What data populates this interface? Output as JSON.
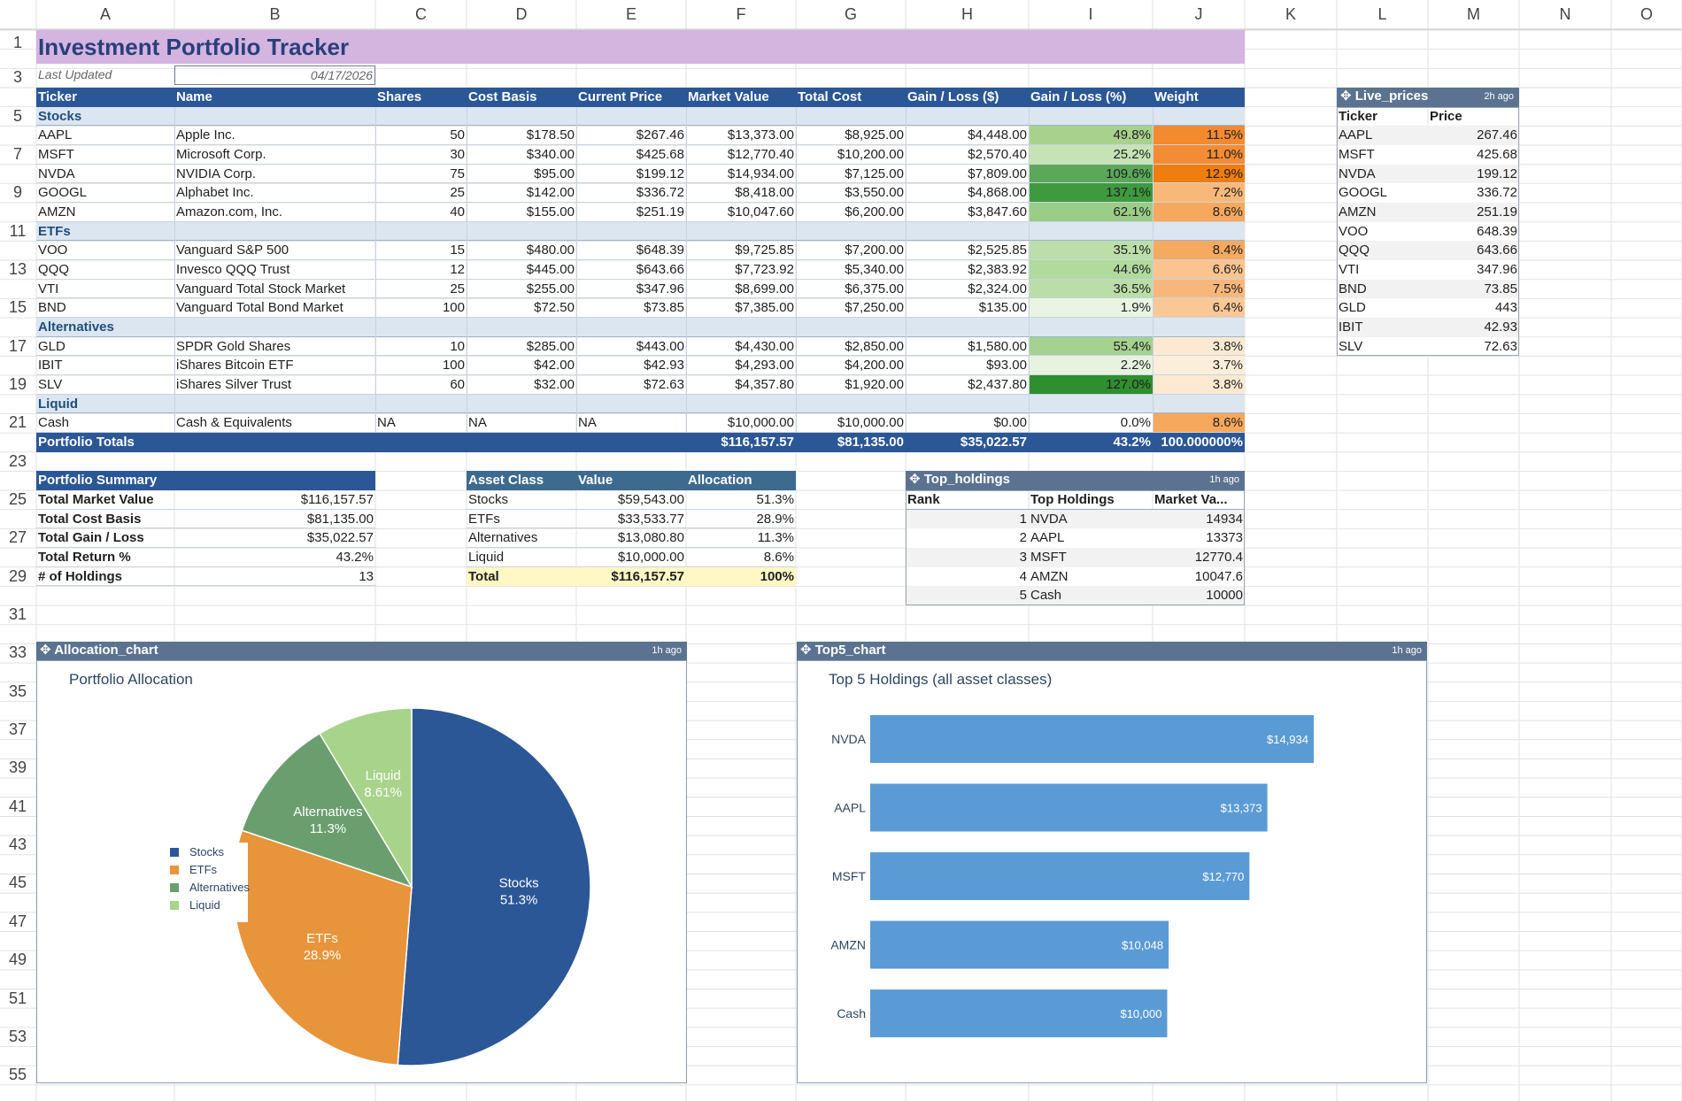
{
  "columns": [
    "A",
    "B",
    "C",
    "D",
    "E",
    "F",
    "G",
    "H",
    "I",
    "J",
    "K",
    "L",
    "M",
    "N",
    "O"
  ],
  "row_numbers": [
    "1",
    "3",
    "5",
    "7",
    "9",
    "11",
    "13",
    "15",
    "17",
    "19",
    "21",
    "23",
    "25",
    "27",
    "29",
    "31",
    "33",
    "35",
    "37",
    "39",
    "41",
    "43",
    "45",
    "47",
    "49",
    "51",
    "53",
    "55"
  ],
  "title": "Investment Portfolio Tracker",
  "last_updated_label": "Last Updated",
  "last_updated_value": "04/17/2026",
  "holdings_headers": [
    "Ticker",
    "Name",
    "Shares",
    "Cost Basis",
    "Current Price",
    "Market Value",
    "Total Cost",
    "Gain / Loss ($)",
    "Gain / Loss (%)",
    "Weight"
  ],
  "groups": {
    "stocks": "Stocks",
    "etfs": "ETFs",
    "alternatives": "Alternatives",
    "liquid": "Liquid"
  },
  "rows": [
    {
      "ticker": "AAPL",
      "name": "Apple Inc.",
      "shares": "50",
      "cost": "$178.50",
      "price": "$267.46",
      "mv": "$13,373.00",
      "tc": "$8,925.00",
      "gl": "$4,448.00",
      "glp": "49.8%",
      "w": "11.5%",
      "glc": "#a9d18e",
      "wc": "#f28a30"
    },
    {
      "ticker": "MSFT",
      "name": "Microsoft Corp.",
      "shares": "30",
      "cost": "$340.00",
      "price": "$425.68",
      "mv": "$12,770.40",
      "tc": "$10,200.00",
      "gl": "$2,570.40",
      "glp": "25.2%",
      "w": "11.0%",
      "glc": "#c6e3b5",
      "wc": "#f48c35"
    },
    {
      "ticker": "NVDA",
      "name": "NVIDIA Corp.",
      "shares": "75",
      "cost": "$95.00",
      "price": "$199.12",
      "mv": "$14,934.00",
      "tc": "$7,125.00",
      "gl": "$7,809.00",
      "glp": "109.6%",
      "w": "12.9%",
      "glc": "#5ba85a",
      "wc": "#f07d10"
    },
    {
      "ticker": "GOOGL",
      "name": "Alphabet Inc.",
      "shares": "25",
      "cost": "$142.00",
      "price": "$336.72",
      "mv": "$8,418.00",
      "tc": "$3,550.00",
      "gl": "$4,868.00",
      "glp": "137.1%",
      "w": "7.2%",
      "glc": "#3e9a3e",
      "wc": "#f8b87a"
    },
    {
      "ticker": "AMZN",
      "name": "Amazon.com, Inc.",
      "shares": "40",
      "cost": "$155.00",
      "price": "$251.19",
      "mv": "$10,047.60",
      "tc": "$6,200.00",
      "gl": "$3,847.60",
      "glp": "62.1%",
      "w": "8.6%",
      "glc": "#9acd86",
      "wc": "#f6a85c"
    },
    {
      "ticker": "VOO",
      "name": "Vanguard S&P 500",
      "shares": "15",
      "cost": "$480.00",
      "price": "$648.39",
      "mv": "$9,725.85",
      "tc": "$7,200.00",
      "gl": "$2,525.85",
      "glp": "35.1%",
      "w": "8.4%",
      "glc": "#bcdfaa",
      "wc": "#f6aa60"
    },
    {
      "ticker": "QQQ",
      "name": "Invesco QQQ Trust",
      "shares": "12",
      "cost": "$445.00",
      "price": "$643.66",
      "mv": "$7,723.92",
      "tc": "$5,340.00",
      "gl": "$2,383.92",
      "glp": "44.6%",
      "w": "6.6%",
      "glc": "#b1da9d",
      "wc": "#f9c48f"
    },
    {
      "ticker": "VTI",
      "name": "Vanguard Total Stock Market",
      "shares": "25",
      "cost": "$255.00",
      "price": "$347.96",
      "mv": "$8,699.00",
      "tc": "$6,375.00",
      "gl": "$2,324.00",
      "glp": "36.5%",
      "w": "7.5%",
      "glc": "#bbdea8",
      "wc": "#f8b77a"
    },
    {
      "ticker": "BND",
      "name": "Vanguard Total Bond Market",
      "shares": "100",
      "cost": "$72.50",
      "price": "$73.85",
      "mv": "$7,385.00",
      "tc": "$7,250.00",
      "gl": "$135.00",
      "glp": "1.9%",
      "w": "6.4%",
      "glc": "#e9f4e2",
      "wc": "#fac896"
    },
    {
      "ticker": "GLD",
      "name": "SPDR Gold Shares",
      "shares": "10",
      "cost": "$285.00",
      "price": "$443.00",
      "mv": "$4,430.00",
      "tc": "$2,850.00",
      "gl": "$1,580.00",
      "glp": "55.4%",
      "w": "3.8%",
      "glc": "#a6d290",
      "wc": "#fde9d2"
    },
    {
      "ticker": "IBIT",
      "name": "iShares Bitcoin ETF",
      "shares": "100",
      "cost": "$42.00",
      "price": "$42.93",
      "mv": "$4,293.00",
      "tc": "$4,200.00",
      "gl": "$93.00",
      "glp": "2.2%",
      "w": "3.7%",
      "glc": "#e7f3e0",
      "wc": "#fdeedb"
    },
    {
      "ticker": "SLV",
      "name": "iShares Silver Trust",
      "shares": "60",
      "cost": "$32.00",
      "price": "$72.63",
      "mv": "$4,357.80",
      "tc": "$1,920.00",
      "gl": "$2,437.80",
      "glp": "127.0%",
      "w": "3.8%",
      "glc": "#2f8f2f",
      "wc": "#fde9d2"
    },
    {
      "ticker": "Cash",
      "name": "Cash & Equivalents",
      "shares": "NA",
      "cost": "NA",
      "price": "NA",
      "mv": "$10,000.00",
      "tc": "$10,000.00",
      "gl": "$0.00",
      "glp": "0.0%",
      "w": "8.6%",
      "glc": "#ffffff",
      "wc": "#f6a85c"
    }
  ],
  "totals": {
    "label": "Portfolio Totals",
    "mv": "$116,157.57",
    "tc": "$81,135.00",
    "gl": "$35,022.57",
    "glp": "43.2%",
    "w": "100.000000%"
  },
  "live_prices": {
    "title": "Live_prices",
    "ago": "2h ago",
    "headers": [
      "Ticker",
      "Price"
    ],
    "rows": [
      [
        "AAPL",
        "267.46"
      ],
      [
        "MSFT",
        "425.68"
      ],
      [
        "NVDA",
        "199.12"
      ],
      [
        "GOOGL",
        "336.72"
      ],
      [
        "AMZN",
        "251.19"
      ],
      [
        "VOO",
        "648.39"
      ],
      [
        "QQQ",
        "643.66"
      ],
      [
        "VTI",
        "347.96"
      ],
      [
        "BND",
        "73.85"
      ],
      [
        "GLD",
        "443"
      ],
      [
        "IBIT",
        "42.93"
      ],
      [
        "SLV",
        "72.63"
      ]
    ]
  },
  "summary": {
    "title": "Portfolio Summary",
    "rows": [
      [
        "Total Market Value",
        "$116,157.57"
      ],
      [
        "Total Cost Basis",
        "$81,135.00"
      ],
      [
        "Total Gain / Loss",
        "$35,022.57"
      ],
      [
        "Total Return %",
        "43.2%"
      ],
      [
        "# of Holdings",
        "13"
      ]
    ]
  },
  "asset_class": {
    "headers": [
      "Asset Class",
      "Value",
      "Allocation"
    ],
    "rows": [
      [
        "Stocks",
        "$59,543.00",
        "51.3%"
      ],
      [
        "ETFs",
        "$33,533.77",
        "28.9%"
      ],
      [
        "Alternatives",
        "$13,080.80",
        "11.3%"
      ],
      [
        "Liquid",
        "$10,000.00",
        "8.6%"
      ]
    ],
    "total": [
      "Total",
      "$116,157.57",
      "100%"
    ]
  },
  "top_holdings": {
    "title": "Top_holdings",
    "ago": "1h ago",
    "headers": [
      "Rank",
      "Top Holdings",
      "Market Va..."
    ],
    "rows": [
      [
        "1",
        "NVDA",
        "14934"
      ],
      [
        "2",
        "AAPL",
        "13373"
      ],
      [
        "3",
        "MSFT",
        "12770.4"
      ],
      [
        "4",
        "AMZN",
        "10047.6"
      ],
      [
        "5",
        "Cash",
        "10000"
      ]
    ]
  },
  "allocation_chart_obj": {
    "title": "Allocation_chart",
    "ago": "1h ago"
  },
  "top5_chart_obj": {
    "title": "Top5_chart",
    "ago": "1h ago"
  },
  "colors": {
    "stocks": "#2b5797",
    "etfs": "#e8943a",
    "alternatives": "#6a9e6e",
    "liquid": "#a7d48a",
    "bar": "#5b9bd5",
    "header": "#2b5797",
    "title_bg": "#d3b5e0"
  },
  "chart_data": [
    {
      "type": "pie",
      "title": "Portfolio Allocation",
      "categories": [
        "Stocks",
        "ETFs",
        "Alternatives",
        "Liquid"
      ],
      "values": [
        51.3,
        28.9,
        11.3,
        8.61
      ],
      "labels": [
        "51.3%",
        "28.9%",
        "11.3%",
        "8.61%"
      ],
      "legend": "left"
    },
    {
      "type": "bar",
      "orientation": "horizontal",
      "title": "Top 5 Holdings (all asset classes)",
      "categories": [
        "NVDA",
        "AAPL",
        "MSFT",
        "AMZN",
        "Cash"
      ],
      "values": [
        14934,
        13373,
        12770,
        10048,
        10000
      ],
      "labels": [
        "$14,934",
        "$13,373",
        "$12,770",
        "$10,048",
        "$10,000"
      ]
    }
  ]
}
